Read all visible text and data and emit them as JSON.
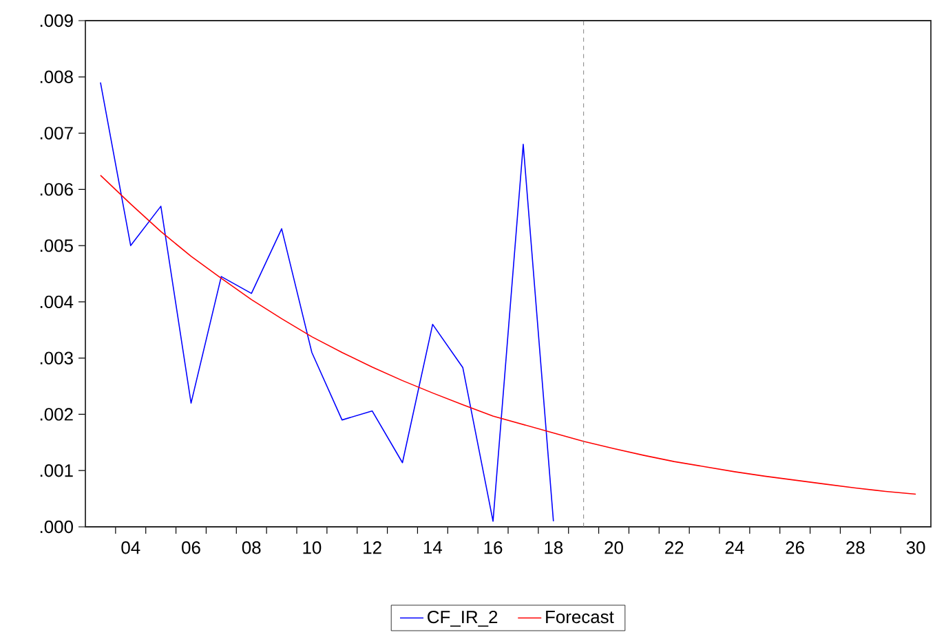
{
  "chart_data": {
    "type": "line",
    "xlim": [
      2002.5,
      2030.5
    ],
    "xticks": [
      {
        "value": 2004,
        "label": "04"
      },
      {
        "value": 2006,
        "label": "06"
      },
      {
        "value": 2008,
        "label": "08"
      },
      {
        "value": 2010,
        "label": "10"
      },
      {
        "value": 2012,
        "label": "12"
      },
      {
        "value": 2014,
        "label": "14"
      },
      {
        "value": 2016,
        "label": "16"
      },
      {
        "value": 2018,
        "label": "18"
      },
      {
        "value": 2020,
        "label": "20"
      },
      {
        "value": 2022,
        "label": "22"
      },
      {
        "value": 2024,
        "label": "24"
      },
      {
        "value": 2026,
        "label": "26"
      },
      {
        "value": 2028,
        "label": "28"
      },
      {
        "value": 2030,
        "label": "30"
      },
      {
        "value": 2003.5,
        "label": null
      },
      {
        "value": 2004.5,
        "label": null
      },
      {
        "value": 2005.5,
        "label": null
      },
      {
        "value": 2006.5,
        "label": null
      },
      {
        "value": 2007.5,
        "label": null
      },
      {
        "value": 2008.5,
        "label": null
      },
      {
        "value": 2009.5,
        "label": null
      },
      {
        "value": 2010.5,
        "label": null
      },
      {
        "value": 2011.5,
        "label": null
      },
      {
        "value": 2012.5,
        "label": null
      },
      {
        "value": 2013.5,
        "label": null
      },
      {
        "value": 2014.5,
        "label": null
      },
      {
        "value": 2015.5,
        "label": null
      },
      {
        "value": 2016.5,
        "label": null
      },
      {
        "value": 2017.5,
        "label": null
      },
      {
        "value": 2018.5,
        "label": null
      },
      {
        "value": 2019.5,
        "label": null
      },
      {
        "value": 2020.5,
        "label": null
      },
      {
        "value": 2021.5,
        "label": null
      },
      {
        "value": 2022.5,
        "label": null
      },
      {
        "value": 2023.5,
        "label": null
      },
      {
        "value": 2024.5,
        "label": null
      },
      {
        "value": 2025.5,
        "label": null
      },
      {
        "value": 2026.5,
        "label": null
      },
      {
        "value": 2027.5,
        "label": null
      },
      {
        "value": 2028.5,
        "label": null
      },
      {
        "value": 2029.5,
        "label": null
      }
    ],
    "ylim": [
      0,
      0.009
    ],
    "yticks": [
      {
        "value": 0,
        "label": ".000"
      },
      {
        "value": 0.001,
        "label": ".001"
      },
      {
        "value": 0.002,
        "label": ".002"
      },
      {
        "value": 0.003,
        "label": ".003"
      },
      {
        "value": 0.004,
        "label": ".004"
      },
      {
        "value": 0.005,
        "label": ".005"
      },
      {
        "value": 0.006,
        "label": ".006"
      },
      {
        "value": 0.007,
        "label": ".007"
      },
      {
        "value": 0.008,
        "label": ".008"
      },
      {
        "value": 0.009,
        "label": ".009"
      }
    ],
    "series": [
      {
        "name": "CF_IR_2",
        "color": "#0000ff",
        "x": [
          2003,
          2004,
          2005,
          2006,
          2007,
          2008,
          2009,
          2010,
          2011,
          2012,
          2013,
          2014,
          2015,
          2016,
          2017,
          2018
        ],
        "values": [
          0.0079,
          0.005,
          0.0057,
          0.0022,
          0.00445,
          0.00415,
          0.0053,
          0.0031,
          0.0019,
          0.00206,
          0.00114,
          0.0036,
          0.00283,
          0.0001,
          0.0068,
          0.0001
        ]
      },
      {
        "name": "Forecast",
        "color": "#ff0000",
        "x": [
          2003,
          2004,
          2005,
          2006,
          2007,
          2008,
          2009,
          2010,
          2011,
          2012,
          2013,
          2014,
          2015,
          2016,
          2017,
          2018,
          2019,
          2020,
          2021,
          2022,
          2023,
          2024,
          2025,
          2026,
          2027,
          2028,
          2029,
          2030
        ],
        "values": [
          0.00625,
          0.00574,
          0.00525,
          0.00481,
          0.00442,
          0.00404,
          0.0037,
          0.00338,
          0.0031,
          0.00284,
          0.0026,
          0.00238,
          0.00217,
          0.00197,
          0.00182,
          0.00167,
          0.00152,
          0.00139,
          0.00127,
          0.00116,
          0.00107,
          0.00098,
          0.0009,
          0.00083,
          0.00076,
          0.00069,
          0.00063,
          0.00058
        ]
      }
    ],
    "ref_lines": [
      {
        "axis": "x",
        "value": 2019,
        "color": "#808080",
        "line_style": "dashed"
      }
    ],
    "legend": "bottom",
    "marker": "none",
    "line_style": "solid"
  }
}
